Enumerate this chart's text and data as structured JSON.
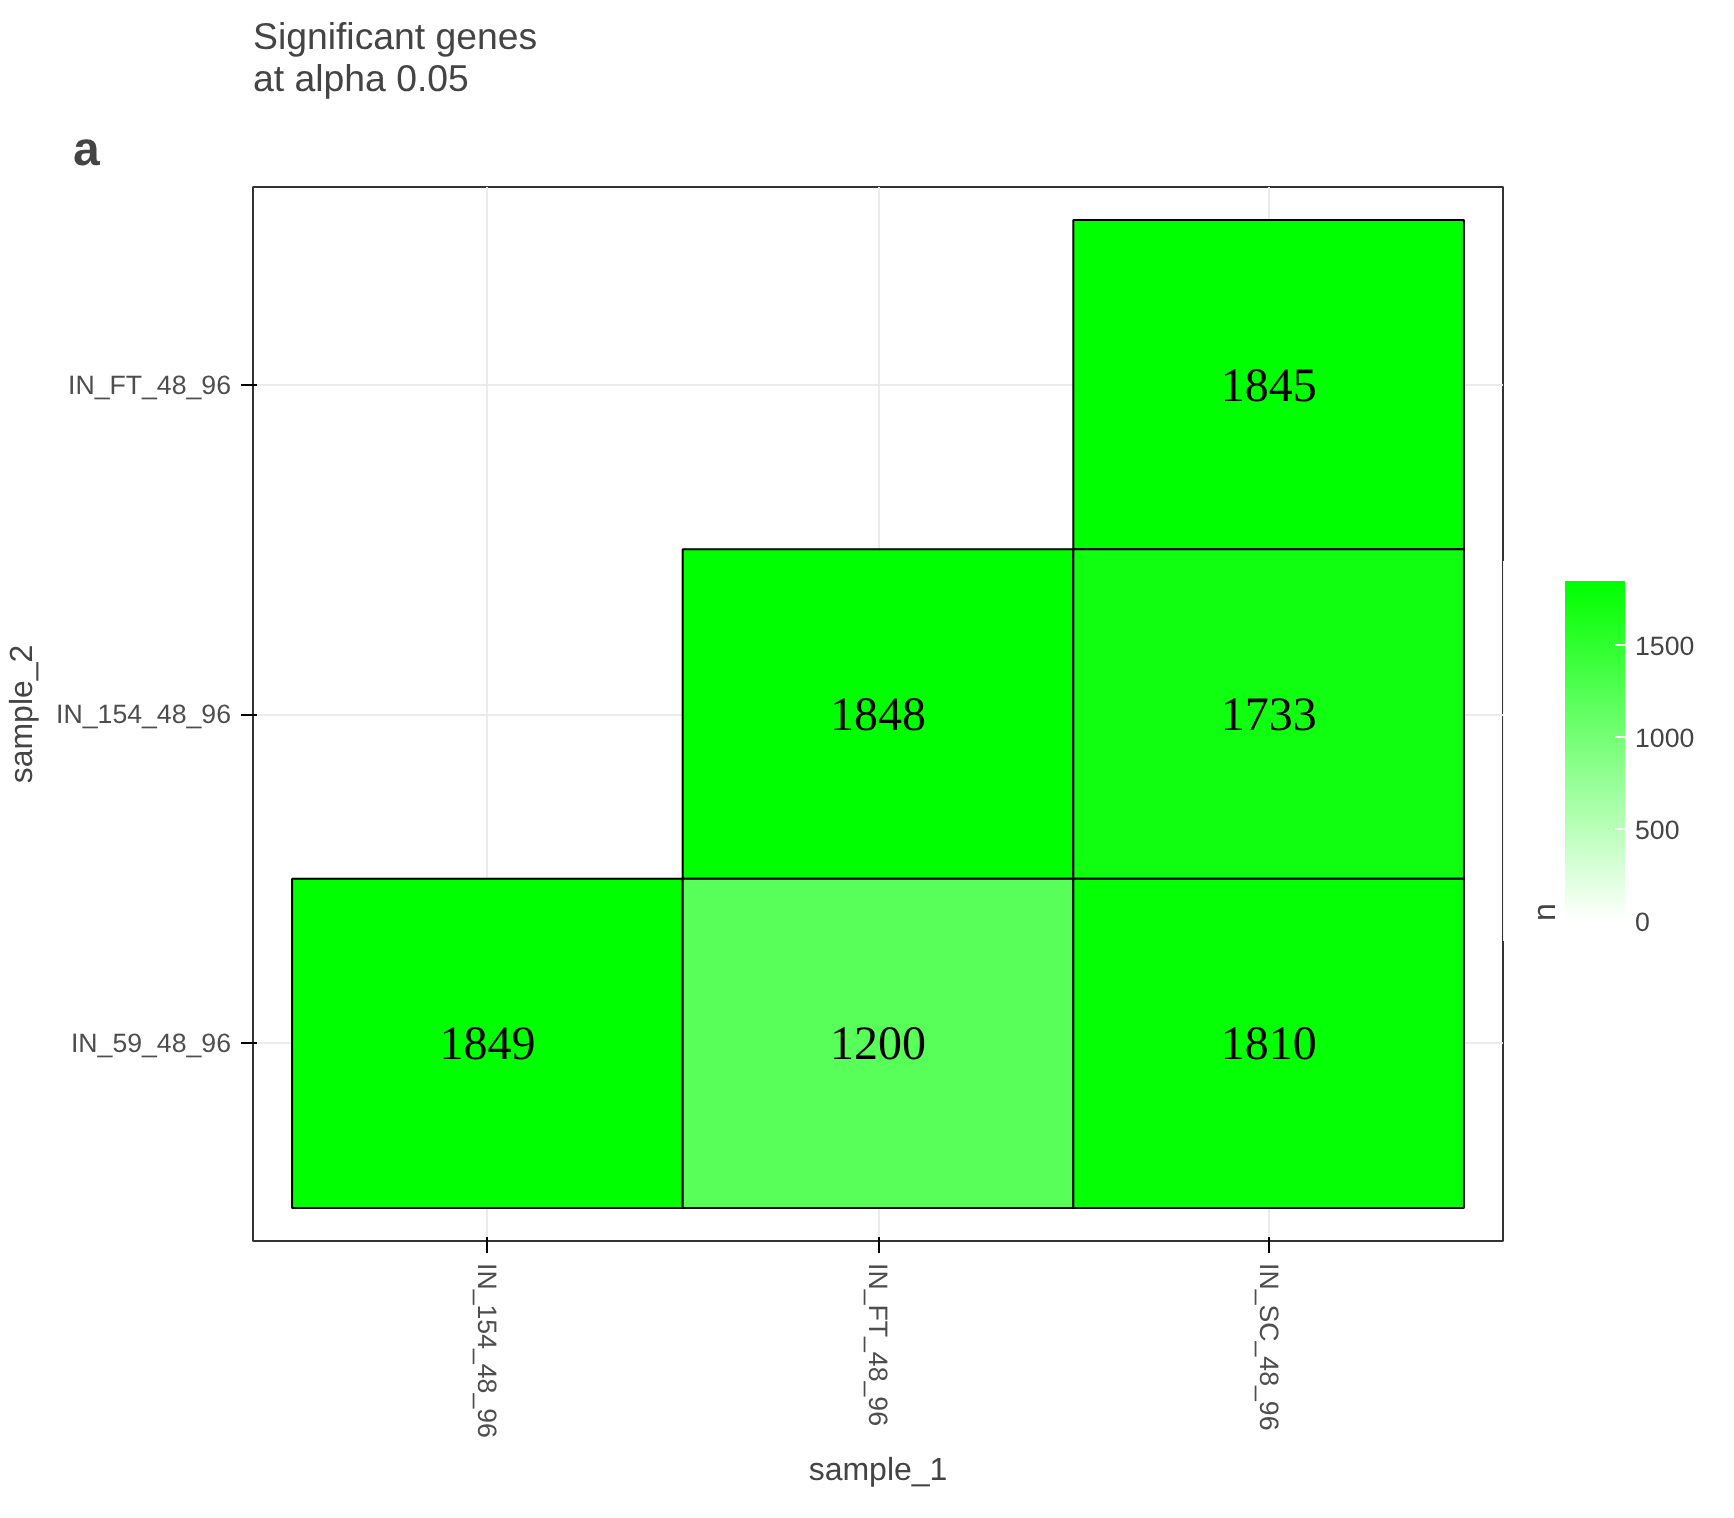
{
  "chart_data": {
    "type": "heatmap",
    "title": "Significant genes\n at alpha 0.05",
    "xlabel": "sample_1",
    "ylabel": "sample_2",
    "clabel": "n",
    "annotations": [
      "a"
    ],
    "categories": [
      "IN_154_48_96",
      "IN_FT_48_96",
      "IN_SC_48_96"
    ],
    "y_categories": [
      "IN_FT_48_96",
      "IN_154_48_96",
      "IN_59_48_96"
    ],
    "cells": [
      [
        null,
        null,
        1845
      ],
      [
        null,
        1848,
        1733
      ],
      [
        1849,
        1200,
        1810
      ]
    ],
    "data_labels": true,
    "clim": [
      0,
      1849
    ],
    "cticks": [
      0,
      500,
      1000,
      1500
    ],
    "colors": [
      "#ffffff",
      "#00ff00"
    ],
    "grid": true
  }
}
